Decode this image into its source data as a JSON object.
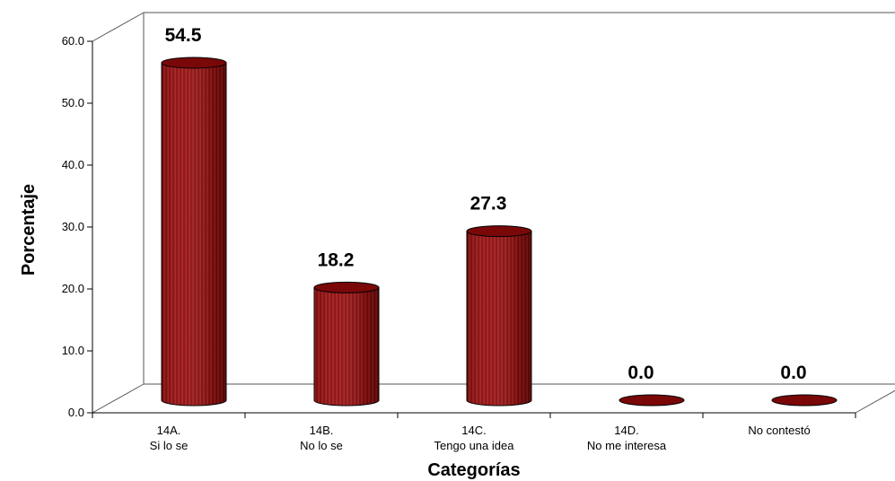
{
  "chart_data": {
    "type": "bar",
    "categories": [
      [
        "14A.",
        "Si lo se"
      ],
      [
        "14B.",
        "No lo se"
      ],
      [
        "14C.",
        "Tengo una idea"
      ],
      [
        "14D.",
        "No me interesa"
      ],
      [
        "No contestó"
      ]
    ],
    "values": [
      54.5,
      18.2,
      27.3,
      0.0,
      0.0
    ],
    "value_labels": [
      "54.5",
      "18.2",
      "27.3",
      "0.0",
      "0.0"
    ],
    "xlabel": "Categorías",
    "ylabel": "Porcentaje",
    "ylim": [
      0,
      60
    ],
    "yticks": [
      "0.0",
      "10.0",
      "20.0",
      "30.0",
      "40.0",
      "50.0",
      "60.0"
    ],
    "bar_style": "3d-cylinder",
    "bar_color": "#8b0a0a",
    "grid": false
  }
}
